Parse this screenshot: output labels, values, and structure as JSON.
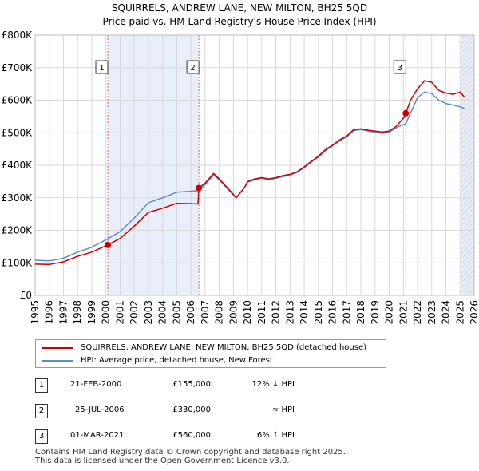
{
  "chart_data": {
    "type": "line",
    "title": "SQUIRRELS, ANDREW LANE, NEW MILTON, BH25 5QD",
    "subtitle": "Price paid vs. HM Land Registry's House Price Index (HPI)",
    "xlim": [
      1995,
      2026
    ],
    "ylim": [
      0,
      800000
    ],
    "y_ticks": [
      {
        "value": 0,
        "label": "£0"
      },
      {
        "value": 100000,
        "label": "£100K"
      },
      {
        "value": 200000,
        "label": "£200K"
      },
      {
        "value": 300000,
        "label": "£300K"
      },
      {
        "value": 400000,
        "label": "£400K"
      },
      {
        "value": 500000,
        "label": "£500K"
      },
      {
        "value": 600000,
        "label": "£600K"
      },
      {
        "value": 700000,
        "label": "£700K"
      },
      {
        "value": 800000,
        "label": "£800K"
      }
    ],
    "x_ticks": [
      "1995",
      "1996",
      "1997",
      "1998",
      "1999",
      "2000",
      "2001",
      "2002",
      "2003",
      "2004",
      "2005",
      "2006",
      "2007",
      "2008",
      "2009",
      "2010",
      "2011",
      "2012",
      "2013",
      "2014",
      "2015",
      "2016",
      "2017",
      "2018",
      "2019",
      "2020",
      "2021",
      "2022",
      "2023",
      "2024",
      "2025",
      "2026"
    ],
    "shaded_regions": [
      [
        2000.13,
        2006.56
      ],
      [
        2025.1,
        2026
      ]
    ],
    "series": [
      {
        "name": "SQUIRRELS, ANDREW LANE, NEW MILTON, BH25 5QD (detached house)",
        "color": "#cc0000",
        "x": [
          1995,
          1996,
          1997,
          1998,
          1999,
          2000.13,
          2001,
          2002,
          2003,
          2004,
          2005,
          2006,
          2006.5,
          2006.56,
          2007,
          2007.6,
          2008,
          2008.7,
          2009.2,
          2009.8,
          2010,
          2010.5,
          2011,
          2011.5,
          2012,
          2012.5,
          2013,
          2013.5,
          2014,
          2014.5,
          2015,
          2015.5,
          2016,
          2016.5,
          2017,
          2017.5,
          2018,
          2018.5,
          2019,
          2019.5,
          2020,
          2020.5,
          2021,
          2021.17,
          2021.5,
          2022,
          2022.5,
          2023,
          2023.5,
          2024,
          2024.5,
          2025,
          2025.3
        ],
        "y": [
          96000,
          95000,
          103000,
          120000,
          133000,
          155000,
          175000,
          213000,
          255000,
          268000,
          283000,
          282000,
          281000,
          330000,
          345000,
          375000,
          358000,
          325000,
          300000,
          333000,
          350000,
          358000,
          362000,
          358000,
          362000,
          368000,
          372000,
          380000,
          395000,
          412000,
          428000,
          448000,
          462000,
          478000,
          490000,
          510000,
          512000,
          508000,
          505000,
          502000,
          505000,
          520000,
          545000,
          560000,
          600000,
          635000,
          660000,
          655000,
          630000,
          622000,
          618000,
          625000,
          610000
        ]
      },
      {
        "name": "HPI: Average price, detached house, New Forest",
        "color": "#5b8ccc",
        "x": [
          1995,
          1996,
          1997,
          1998,
          1999,
          2000.13,
          2001,
          2002,
          2003,
          2004,
          2005,
          2006,
          2006.56,
          2007,
          2007.6,
          2008,
          2008.7,
          2009.2,
          2009.8,
          2010,
          2010.5,
          2011,
          2011.5,
          2012,
          2012.5,
          2013,
          2013.5,
          2014,
          2014.5,
          2015,
          2015.5,
          2016,
          2016.5,
          2017,
          2017.5,
          2018,
          2018.5,
          2019,
          2019.5,
          2020,
          2020.5,
          2021,
          2021.17,
          2021.5,
          2022,
          2022.5,
          2023,
          2023.5,
          2024,
          2024.5,
          2025,
          2025.3
        ],
        "y": [
          108000,
          106000,
          114000,
          133000,
          148000,
          174000,
          196000,
          238000,
          285000,
          300000,
          317000,
          320000,
          322000,
          340000,
          370000,
          355000,
          322000,
          300000,
          332000,
          348000,
          355000,
          360000,
          355000,
          360000,
          365000,
          370000,
          378000,
          393000,
          410000,
          425000,
          445000,
          460000,
          475000,
          487000,
          507000,
          510000,
          505000,
          502000,
          499000,
          502000,
          515000,
          525000,
          528000,
          560000,
          608000,
          625000,
          620000,
          600000,
          590000,
          585000,
          580000,
          575000
        ]
      }
    ],
    "sales": [
      {
        "label": "1",
        "x": 2000.13,
        "y": 155000
      },
      {
        "label": "2",
        "x": 2006.56,
        "y": 330000
      },
      {
        "label": "3",
        "x": 2021.17,
        "y": 560000
      }
    ]
  },
  "legend": {
    "items": [
      {
        "label": "SQUIRRELS, ANDREW LANE, NEW MILTON, BH25 5QD (detached house)",
        "color": "#cc0000"
      },
      {
        "label": "HPI: Average price, detached house, New Forest",
        "color": "#5b8ccc"
      }
    ]
  },
  "transactions": [
    {
      "num": "1",
      "date": "21-FEB-2000",
      "price": "£155,000",
      "hpi": "12% ↓ HPI"
    },
    {
      "num": "2",
      "date": "25-JUL-2006",
      "price": "£330,000",
      "hpi": "≈ HPI"
    },
    {
      "num": "3",
      "date": "01-MAR-2021",
      "price": "£560,000",
      "hpi": "6% ↑ HPI"
    }
  ],
  "footer": {
    "line1": "Contains HM Land Registry data © Crown copyright and database right 2025.",
    "line2": "This data is licensed under the Open Government Licence v3.0."
  }
}
